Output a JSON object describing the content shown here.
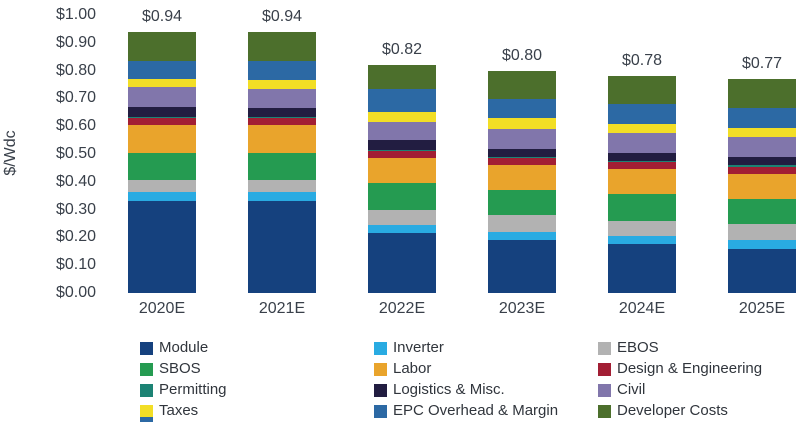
{
  "chart": {
    "axis_title": "$/Wdc",
    "y_ticks": [
      "$1.00",
      "$0.90",
      "$0.80",
      "$0.70",
      "$0.60",
      "$0.50",
      "$0.40",
      "$0.30",
      "$0.20",
      "$0.10",
      "$0.00"
    ],
    "text_color": "#39404A",
    "cropped_partial_swatch_color": "#2C69A4"
  },
  "chart_data": {
    "type": "bar",
    "stacked": true,
    "title": "",
    "xlabel": "",
    "ylabel": "$/Wdc",
    "ylim": [
      0,
      1.0
    ],
    "grid": false,
    "legend_position": "bottom",
    "categories": [
      "2020E",
      "2021E",
      "2022E",
      "2023E",
      "2024E",
      "2025E"
    ],
    "totals": [
      0.94,
      0.94,
      0.82,
      0.8,
      0.78,
      0.77
    ],
    "total_labels": [
      "$0.94",
      "$0.94",
      "$0.82",
      "$0.80",
      "$0.78",
      "$0.77"
    ],
    "series": [
      {
        "name": "Module",
        "color": "#15417E",
        "values": [
          0.33,
          0.33,
          0.215,
          0.19,
          0.175,
          0.16
        ]
      },
      {
        "name": "Inverter",
        "color": "#29ABE2",
        "values": [
          0.035,
          0.035,
          0.03,
          0.03,
          0.03,
          0.03
        ]
      },
      {
        "name": "EBOS",
        "color": "#B2B2B2",
        "values": [
          0.04,
          0.04,
          0.055,
          0.06,
          0.055,
          0.06
        ]
      },
      {
        "name": "SBOS",
        "color": "#259B51",
        "values": [
          0.1,
          0.1,
          0.095,
          0.09,
          0.095,
          0.09
        ]
      },
      {
        "name": "Labor",
        "color": "#E9A42C",
        "values": [
          0.1,
          0.1,
          0.09,
          0.09,
          0.09,
          0.09
        ]
      },
      {
        "name": "Design & Engineering",
        "color": "#A21E34",
        "values": [
          0.025,
          0.025,
          0.025,
          0.025,
          0.025,
          0.025
        ]
      },
      {
        "name": "Permitting",
        "color": "#1C8374",
        "values": [
          0.005,
          0.005,
          0.005,
          0.005,
          0.005,
          0.005
        ]
      },
      {
        "name": "Logistics & Misc.",
        "color": "#221D41",
        "values": [
          0.035,
          0.03,
          0.035,
          0.03,
          0.03,
          0.03
        ]
      },
      {
        "name": "Civil",
        "color": "#8176AB",
        "values": [
          0.07,
          0.07,
          0.065,
          0.07,
          0.07,
          0.07
        ]
      },
      {
        "name": "Taxes",
        "color": "#F2DE26",
        "values": [
          0.03,
          0.03,
          0.035,
          0.04,
          0.035,
          0.035
        ]
      },
      {
        "name": "EPC Overhead & Margin",
        "color": "#2C69A4",
        "values": [
          0.065,
          0.07,
          0.085,
          0.07,
          0.07,
          0.07
        ]
      },
      {
        "name": "Developer Costs",
        "color": "#4C6F2C",
        "values": [
          0.105,
          0.105,
          0.085,
          0.1,
          0.1,
          0.105
        ]
      }
    ],
    "legend_columns": [
      [
        "Module",
        "SBOS",
        "Permitting",
        "Taxes"
      ],
      [
        "Inverter",
        "Labor",
        "Logistics & Misc.",
        "EPC Overhead & Margin"
      ],
      [
        "EBOS",
        "Design & Engineering",
        "Civil",
        "Developer Costs"
      ]
    ]
  }
}
